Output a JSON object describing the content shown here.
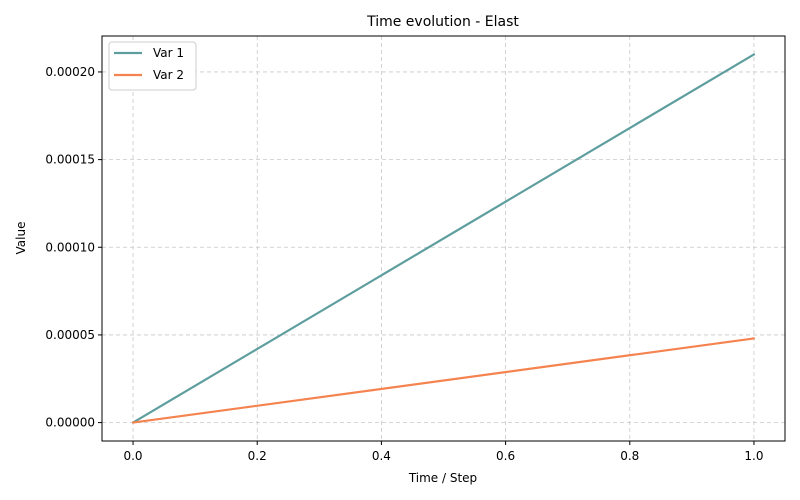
{
  "chart_data": {
    "type": "line",
    "title": "Time evolution - Elast",
    "xlabel": "Time / Step",
    "ylabel": "Value",
    "xlim": [
      -0.05,
      1.05
    ],
    "ylim": [
      -1.05e-05,
      0.0002205
    ],
    "x_ticks": [
      0.0,
      0.2,
      0.4,
      0.6,
      0.8,
      1.0
    ],
    "x_tick_labels": [
      "0.0",
      "0.2",
      "0.4",
      "0.6",
      "0.8",
      "1.0"
    ],
    "y_ticks": [
      0.0,
      5e-05,
      0.0001,
      0.00015,
      0.0002
    ],
    "y_tick_labels": [
      "0.00000",
      "0.00005",
      "0.00010",
      "0.00015",
      "0.00020"
    ],
    "grid": true,
    "legend_position": "top-left",
    "series": [
      {
        "name": "Var 1",
        "color": "#5f9e9e",
        "x": [
          0.0,
          1.0
        ],
        "y": [
          0.0,
          0.00021
        ]
      },
      {
        "name": "Var 2",
        "color": "#f5834f",
        "x": [
          0.0,
          1.0
        ],
        "y": [
          0.0,
          4.8e-05
        ]
      }
    ]
  }
}
